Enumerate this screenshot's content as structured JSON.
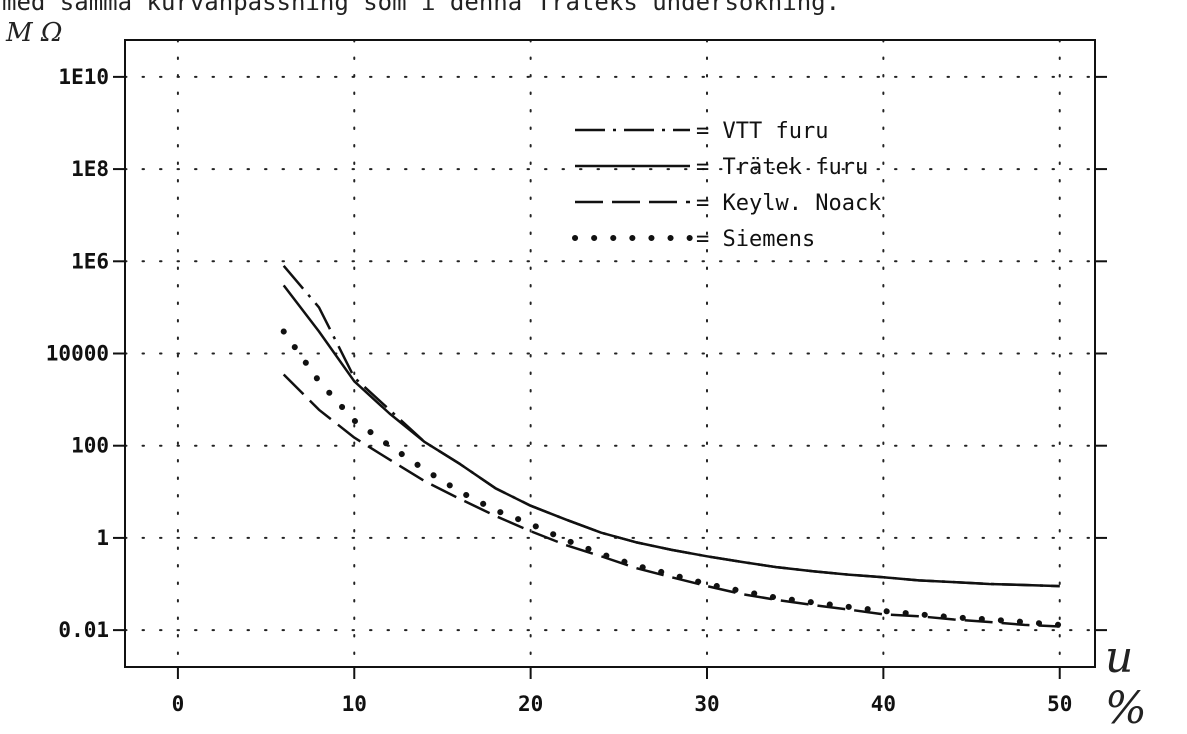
{
  "page": {
    "header_text": "med samma kurvanpassning som i denna Träteks undersökning."
  },
  "chart_data": {
    "type": "line",
    "title": "",
    "xlabel": "u %",
    "ylabel": "M Ω",
    "xlim": [
      -3,
      52
    ],
    "ylim_log10": [
      -2.8,
      10.8
    ],
    "y_scale": "log",
    "grid": "dotted",
    "legend_position": "top-right",
    "x_ticks": [
      0,
      10,
      20,
      30,
      40,
      50
    ],
    "x_tick_labels": [
      "0",
      "10",
      "20",
      "30",
      "40",
      "50"
    ],
    "y_ticks": [
      0.01,
      1,
      100,
      10000,
      1000000,
      100000000,
      10000000000
    ],
    "y_tick_labels": [
      "0.01",
      "1",
      "100",
      "10000",
      "1E6",
      "1E8",
      "1E10"
    ],
    "series": [
      {
        "name": "VTT furu",
        "style": "dashdot",
        "x": [
          6,
          8,
          10,
          12,
          14,
          16,
          18,
          20,
          22,
          24,
          26,
          28,
          30,
          32,
          34,
          36,
          38,
          40,
          42,
          44,
          46,
          48,
          50
        ],
        "y": [
          800000,
          100000,
          3000,
          600,
          120,
          40,
          12,
          5,
          2.5,
          1.3,
          0.8,
          0.55,
          0.4,
          0.3,
          0.23,
          0.19,
          0.16,
          0.14,
          0.12,
          0.11,
          0.1,
          0.095,
          0.09
        ]
      },
      {
        "name": "Trätek furu",
        "style": "solid",
        "x": [
          6,
          8,
          10,
          12,
          14,
          16,
          18,
          20,
          22,
          24,
          26,
          28,
          30,
          32,
          34,
          36,
          38,
          40,
          42,
          44,
          46,
          48,
          50
        ],
        "y": [
          300000,
          30000,
          2500,
          500,
          120,
          40,
          12,
          5,
          2.5,
          1.3,
          0.8,
          0.55,
          0.4,
          0.3,
          0.23,
          0.19,
          0.16,
          0.14,
          0.12,
          0.11,
          0.1,
          0.095,
          0.09
        ]
      },
      {
        "name": "Keylw. Noack",
        "style": "dashed",
        "x": [
          6,
          8,
          10,
          12,
          14,
          16,
          18,
          20,
          22,
          24,
          26,
          28,
          30,
          32,
          34,
          36,
          38,
          40,
          42,
          44,
          46,
          48,
          50
        ],
        "y": [
          3500,
          600,
          150,
          50,
          17,
          7,
          3,
          1.4,
          0.7,
          0.4,
          0.22,
          0.14,
          0.09,
          0.06,
          0.045,
          0.035,
          0.028,
          0.022,
          0.02,
          0.017,
          0.015,
          0.013,
          0.012
        ]
      },
      {
        "name": "Siemens",
        "style": "dotted",
        "x": [
          6,
          8,
          10,
          12,
          14,
          16,
          18,
          20,
          22,
          24,
          26,
          28,
          30,
          32,
          34,
          36,
          38,
          40,
          42,
          44,
          46,
          48,
          50
        ],
        "y": [
          30000,
          2500,
          350,
          100,
          30,
          10,
          4,
          2,
          0.9,
          0.45,
          0.25,
          0.16,
          0.1,
          0.07,
          0.05,
          0.04,
          0.032,
          0.026,
          0.022,
          0.019,
          0.017,
          0.015,
          0.013
        ]
      }
    ],
    "legend_prefix": "= "
  }
}
